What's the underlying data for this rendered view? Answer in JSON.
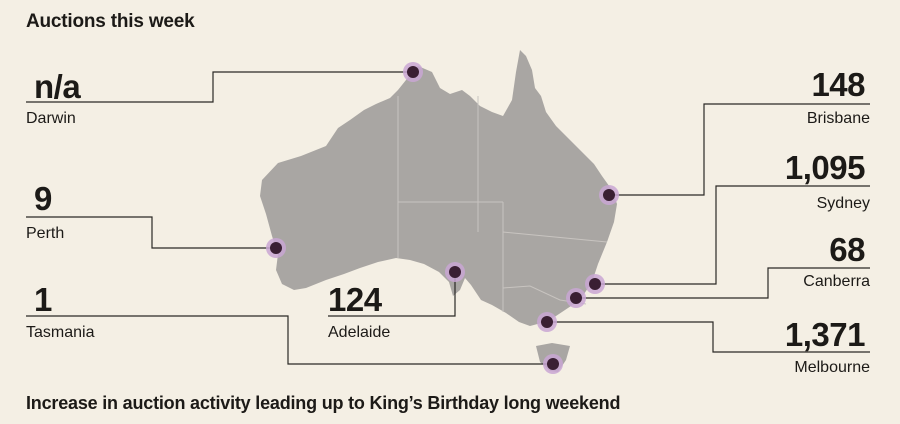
{
  "title": "Auctions this week",
  "footer": "Increase in auction activity leading up to King’s Birthday long weekend",
  "colors": {
    "background": "#f4efe4",
    "land": "#a9a6a3",
    "border": "#c8c4c0",
    "marker": "#3a1f33",
    "halo": "#c9a6d3",
    "leader": "#2b2926"
  },
  "cities": {
    "darwin": {
      "name": "Darwin",
      "value": "n/a"
    },
    "perth": {
      "name": "Perth",
      "value": "9"
    },
    "tasmania": {
      "name": "Tasmania",
      "value": "1"
    },
    "adelaide": {
      "name": "Adelaide",
      "value": "124"
    },
    "brisbane": {
      "name": "Brisbane",
      "value": "148"
    },
    "sydney": {
      "name": "Sydney",
      "value": "1,095"
    },
    "canberra": {
      "name": "Canberra",
      "value": "68"
    },
    "melbourne": {
      "name": "Melbourne",
      "value": "1,371"
    }
  }
}
